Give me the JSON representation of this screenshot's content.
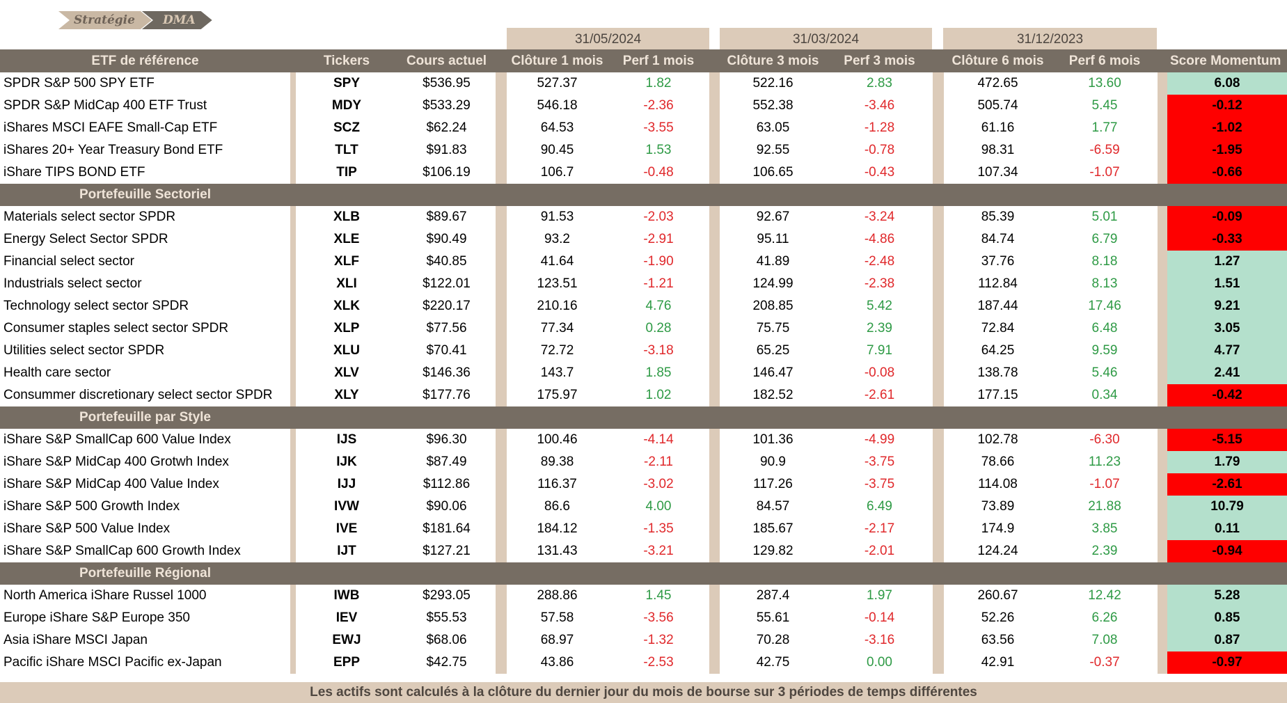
{
  "breadcrumb": [
    "Stratégie",
    "DMA"
  ],
  "dates": [
    "31/05/2024",
    "31/03/2024",
    "31/12/2023"
  ],
  "columns": {
    "name": "ETF de référence",
    "ticker": "Tickers",
    "price": "Cours actuel",
    "c1": "Clôture 1 mois",
    "p1": "Perf 1 mois",
    "c3": "Clôture 3 mois",
    "p3": "Perf 3 mois",
    "c6": "Clôture 6 mois",
    "p6": "Perf 6 mois",
    "score": "Score Momentum"
  },
  "colors": {
    "header_bg": "#766d63",
    "tan": "#dccbb9",
    "positive": "#2e9a45",
    "negative": "#e0282b",
    "score_up": "#b4e0cc",
    "score_down": "#fe0000"
  },
  "sections": [
    {
      "title": "",
      "rows": [
        {
          "name": "SPDR S&P 500 SPY ETF",
          "ticker": "SPY",
          "price": "$536.95",
          "c1": "527.37",
          "p1": "1.82",
          "c3": "522.16",
          "p3": "2.83",
          "c6": "472.65",
          "p6": "13.60",
          "score": "6.08"
        },
        {
          "name": "SPDR S&P MidCap 400 ETF Trust",
          "ticker": "MDY",
          "price": "$533.29",
          "c1": "546.18",
          "p1": "-2.36",
          "c3": "552.38",
          "p3": "-3.46",
          "c6": "505.74",
          "p6": "5.45",
          "score": "-0.12"
        },
        {
          "name": "iShares MSCI EAFE Small-Cap ETF",
          "ticker": "SCZ",
          "price": "$62.24",
          "c1": "64.53",
          "p1": "-3.55",
          "c3": "63.05",
          "p3": "-1.28",
          "c6": "61.16",
          "p6": "1.77",
          "score": "-1.02"
        },
        {
          "name": "iShares 20+ Year Treasury Bond ETF",
          "ticker": "TLT",
          "price": "$91.83",
          "c1": "90.45",
          "p1": "1.53",
          "c3": "92.55",
          "p3": "-0.78",
          "c6": "98.31",
          "p6": "-6.59",
          "score": "-1.95"
        },
        {
          "name": "iShare TIPS BOND ETF",
          "ticker": "TIP",
          "price": "$106.19",
          "c1": "106.7",
          "p1": "-0.48",
          "c3": "106.65",
          "p3": "-0.43",
          "c6": "107.34",
          "p6": "-1.07",
          "score": "-0.66"
        }
      ]
    },
    {
      "title": "Portefeuille Sectoriel",
      "rows": [
        {
          "name": "Materials select sector SPDR",
          "ticker": "XLB",
          "price": "$89.67",
          "c1": "91.53",
          "p1": "-2.03",
          "c3": "92.67",
          "p3": "-3.24",
          "c6": "85.39",
          "p6": "5.01",
          "score": "-0.09"
        },
        {
          "name": "Energy Select Sector SPDR",
          "ticker": "XLE",
          "price": "$90.49",
          "c1": "93.2",
          "p1": "-2.91",
          "c3": "95.11",
          "p3": "-4.86",
          "c6": "84.74",
          "p6": "6.79",
          "score": "-0.33"
        },
        {
          "name": "Financial select sector",
          "ticker": "XLF",
          "price": "$40.85",
          "c1": "41.64",
          "p1": "-1.90",
          "c3": "41.89",
          "p3": "-2.48",
          "c6": "37.76",
          "p6": "8.18",
          "score": "1.27"
        },
        {
          "name": "Industrials select sector",
          "ticker": "XLI",
          "price": "$122.01",
          "c1": "123.51",
          "p1": "-1.21",
          "c3": "124.99",
          "p3": "-2.38",
          "c6": "112.84",
          "p6": "8.13",
          "score": "1.51"
        },
        {
          "name": "Technology select sector SPDR",
          "ticker": "XLK",
          "price": "$220.17",
          "c1": "210.16",
          "p1": "4.76",
          "c3": "208.85",
          "p3": "5.42",
          "c6": "187.44",
          "p6": "17.46",
          "score": "9.21"
        },
        {
          "name": "Consumer staples select sector SPDR",
          "ticker": "XLP",
          "price": "$77.56",
          "c1": "77.34",
          "p1": "0.28",
          "c3": "75.75",
          "p3": "2.39",
          "c6": "72.84",
          "p6": "6.48",
          "score": "3.05"
        },
        {
          "name": "Utilities select sector SPDR",
          "ticker": "XLU",
          "price": "$70.41",
          "c1": "72.72",
          "p1": "-3.18",
          "c3": "65.25",
          "p3": "7.91",
          "c6": "64.25",
          "p6": "9.59",
          "score": "4.77"
        },
        {
          "name": "Health care sector",
          "ticker": "XLV",
          "price": "$146.36",
          "c1": "143.7",
          "p1": "1.85",
          "c3": "146.47",
          "p3": "-0.08",
          "c6": "138.78",
          "p6": "5.46",
          "score": "2.41"
        },
        {
          "name": "Consummer discretionary select sector SPDR",
          "ticker": "XLY",
          "price": "$177.76",
          "c1": "175.97",
          "p1": "1.02",
          "c3": "182.52",
          "p3": "-2.61",
          "c6": "177.15",
          "p6": "0.34",
          "score": "-0.42"
        }
      ]
    },
    {
      "title": "Portefeuille par Style",
      "rows": [
        {
          "name": "iShare S&P SmallCap 600 Value Index",
          "ticker": "IJS",
          "price": "$96.30",
          "c1": "100.46",
          "p1": "-4.14",
          "c3": "101.36",
          "p3": "-4.99",
          "c6": "102.78",
          "p6": "-6.30",
          "score": "-5.15"
        },
        {
          "name": "iShare S&P MidCap 400 Grotwh Index",
          "ticker": "IJK",
          "price": "$87.49",
          "c1": "89.38",
          "p1": "-2.11",
          "c3": "90.9",
          "p3": "-3.75",
          "c6": "78.66",
          "p6": "11.23",
          "score": "1.79"
        },
        {
          "name": "iShare S&P MidCap 400 Value Index",
          "ticker": "IJJ",
          "price": "$112.86",
          "c1": "116.37",
          "p1": "-3.02",
          "c3": "117.26",
          "p3": "-3.75",
          "c6": "114.08",
          "p6": "-1.07",
          "score": "-2.61"
        },
        {
          "name": "iShare S&P 500 Growth Index",
          "ticker": "IVW",
          "price": "$90.06",
          "c1": "86.6",
          "p1": "4.00",
          "c3": "84.57",
          "p3": "6.49",
          "c6": "73.89",
          "p6": "21.88",
          "score": "10.79"
        },
        {
          "name": "iShare S&P 500 Value Index",
          "ticker": "IVE",
          "price": "$181.64",
          "c1": "184.12",
          "p1": "-1.35",
          "c3": "185.67",
          "p3": "-2.17",
          "c6": "174.9",
          "p6": "3.85",
          "score": "0.11"
        },
        {
          "name": "iShare S&P SmallCap 600 Growth Index",
          "ticker": "IJT",
          "price": "$127.21",
          "c1": "131.43",
          "p1": "-3.21",
          "c3": "129.82",
          "p3": "-2.01",
          "c6": "124.24",
          "p6": "2.39",
          "score": "-0.94"
        }
      ]
    },
    {
      "title": "Portefeuille Régional",
      "rows": [
        {
          "name": "North America iShare Russel 1000",
          "ticker": "IWB",
          "price": "$293.05",
          "c1": "288.86",
          "p1": "1.45",
          "c3": "287.4",
          "p3": "1.97",
          "c6": "260.67",
          "p6": "12.42",
          "score": "5.28"
        },
        {
          "name": "Europe iShare S&P Europe 350",
          "ticker": "IEV",
          "price": "$55.53",
          "c1": "57.58",
          "p1": "-3.56",
          "c3": "55.61",
          "p3": "-0.14",
          "c6": "52.26",
          "p6": "6.26",
          "score": "0.85"
        },
        {
          "name": "Asia iShare MSCI Japan",
          "ticker": "EWJ",
          "price": "$68.06",
          "c1": "68.97",
          "p1": "-1.32",
          "c3": "70.28",
          "p3": "-3.16",
          "c6": "63.56",
          "p6": "7.08",
          "score": "0.87"
        },
        {
          "name": "Pacific iShare MSCI Pacific ex-Japan",
          "ticker": "EPP",
          "price": "$42.75",
          "c1": "43.86",
          "p1": "-2.53",
          "c3": "42.75",
          "p3": "0.00",
          "c6": "42.91",
          "p6": "-0.37",
          "score": "-0.97"
        }
      ]
    }
  ],
  "footer": "Les actifs sont calculés à la clôture du dernier jour du mois de bourse sur 3 périodes de temps différentes"
}
